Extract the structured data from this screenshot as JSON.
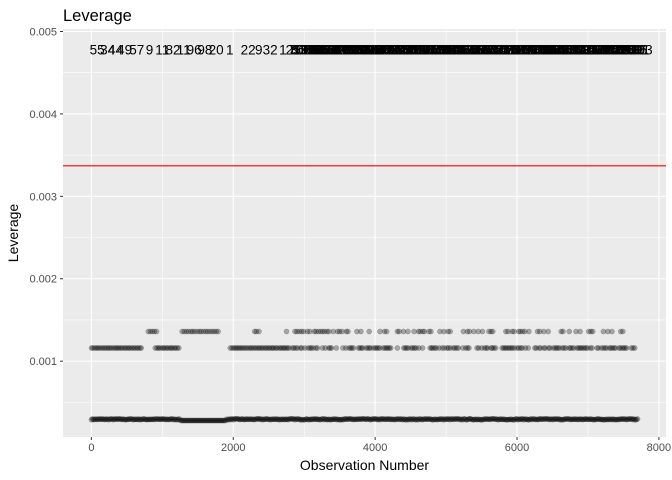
{
  "chart_data": {
    "type": "scatter",
    "title": "Leverage",
    "xlabel": "Observation Number",
    "ylabel": "Leverage",
    "xlim": [
      -400,
      8100
    ],
    "ylim": [
      8e-05,
      0.00503
    ],
    "x_ticks": [
      {
        "value": 0,
        "label": "0"
      },
      {
        "value": 2000,
        "label": "2000"
      },
      {
        "value": 4000,
        "label": "4000"
      },
      {
        "value": 6000,
        "label": "6000"
      },
      {
        "value": 8000,
        "label": "8000"
      }
    ],
    "y_ticks": [
      {
        "value": 0.001,
        "label": "0.001"
      },
      {
        "value": 0.002,
        "label": "0.002"
      },
      {
        "value": 0.003,
        "label": "0.003"
      },
      {
        "value": 0.004,
        "label": "0.004"
      },
      {
        "value": 0.005,
        "label": "0.005"
      }
    ],
    "grid": true,
    "background": "#ebebeb",
    "grid_color": "#ffffff",
    "point_color": "#000000",
    "point_alpha": 0.3,
    "threshold": {
      "y": 0.00337,
      "color": "#ff0000"
    },
    "series": [
      {
        "x_start": 0,
        "x_end": 7700,
        "y": 0.000295,
        "density": "continuous"
      },
      {
        "x_start": 0,
        "x_end": 7680,
        "y": 0.00116,
        "density": "intermittent"
      },
      {
        "x_start": 800,
        "x_end": 7600,
        "y": 0.00136,
        "density": "intermittent"
      }
    ],
    "high_leverage_label_y": 0.00478,
    "high_leverage_labels": [
      {
        "x": 80,
        "text": "55"
      },
      {
        "x": 230,
        "text": "34"
      },
      {
        "x": 340,
        "text": "44"
      },
      {
        "x": 470,
        "text": "49"
      },
      {
        "x": 640,
        "text": "57"
      },
      {
        "x": 820,
        "text": "9"
      },
      {
        "x": 1000,
        "text": "11"
      },
      {
        "x": 1150,
        "text": "82"
      },
      {
        "x": 1300,
        "text": "11"
      },
      {
        "x": 1450,
        "text": "96"
      },
      {
        "x": 1600,
        "text": "98"
      },
      {
        "x": 1760,
        "text": "20"
      },
      {
        "x": 1950,
        "text": "1"
      },
      {
        "x": 2210,
        "text": "22"
      },
      {
        "x": 2360,
        "text": "9"
      },
      {
        "x": 2520,
        "text": "32"
      },
      {
        "x": 2700,
        "text": "1"
      },
      {
        "x": 2850,
        "text": "3"
      }
    ]
  }
}
